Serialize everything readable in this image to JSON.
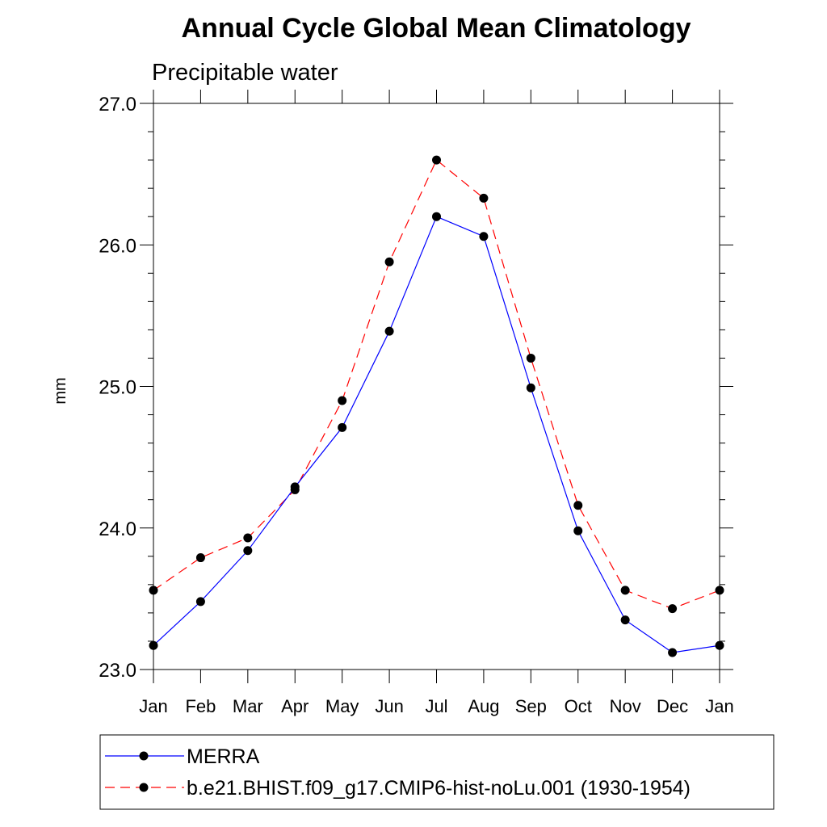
{
  "chart_data": {
    "type": "line",
    "title": "Annual Cycle Global Mean Climatology",
    "subtitle": "Precipitable water",
    "xlabel": "",
    "ylabel": "mm",
    "categories": [
      "Jan",
      "Feb",
      "Mar",
      "Apr",
      "May",
      "Jun",
      "Jul",
      "Aug",
      "Sep",
      "Oct",
      "Nov",
      "Dec",
      "Jan"
    ],
    "ylim": [
      23.0,
      27.0
    ],
    "yticks": [
      "23.0",
      "24.0",
      "25.0",
      "26.0",
      "27.0"
    ],
    "grid": false,
    "legend_position": "bottom",
    "series": [
      {
        "name": "MERRA",
        "color": "#0000ff",
        "line_style": "solid",
        "marker": "filled-circle",
        "values": [
          23.17,
          23.48,
          23.84,
          24.29,
          24.71,
          25.39,
          26.2,
          26.06,
          24.99,
          23.98,
          23.35,
          23.12,
          23.17
        ]
      },
      {
        "name": "b.e21.BHIST.f09_g17.CMIP6-hist-noLu.001 (1930-1954)",
        "color": "#ff0000",
        "line_style": "dashed",
        "marker": "filled-circle",
        "values": [
          23.56,
          23.79,
          23.93,
          24.27,
          24.9,
          25.88,
          26.6,
          26.33,
          25.2,
          24.16,
          23.56,
          23.43,
          23.56
        ]
      }
    ]
  }
}
